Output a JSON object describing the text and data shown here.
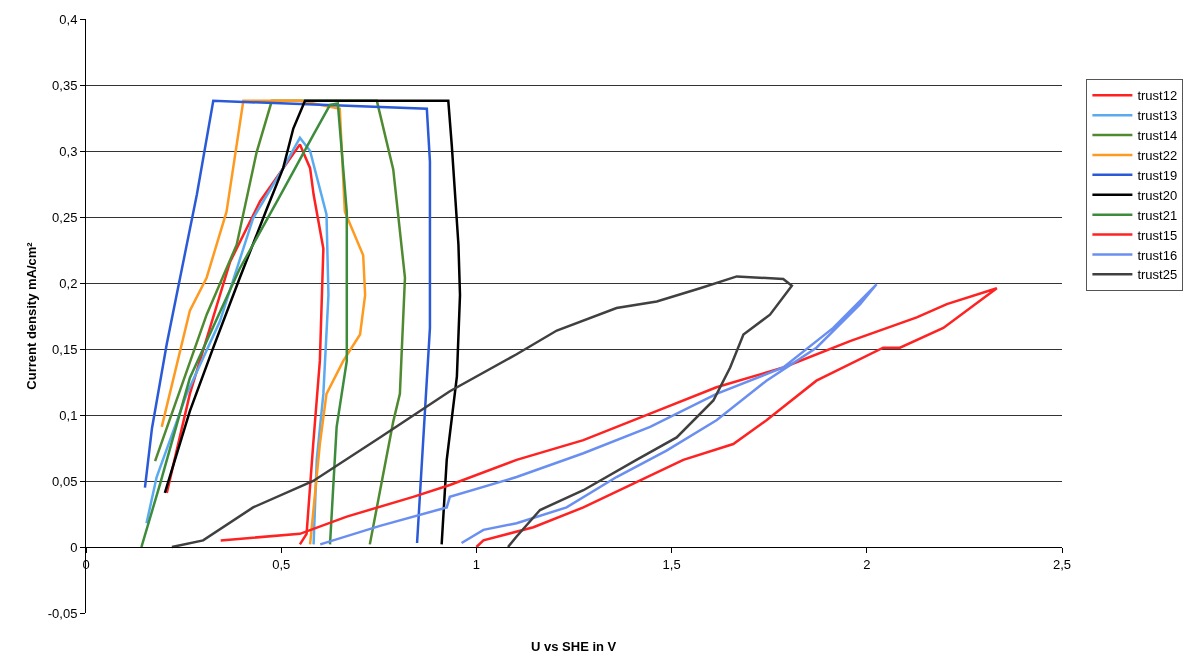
{
  "chart_data": {
    "type": "line",
    "xlabel": "U vs SHE in V",
    "ylabel": "Current density mA/cm²",
    "xlim": [
      0,
      2.5
    ],
    "ylim": [
      -0.05,
      0.4
    ],
    "xticks": [
      0,
      {
        "value": 0.5,
        "label": "0,5"
      },
      1,
      {
        "value": 1.5,
        "label": "1,5"
      },
      2,
      {
        "value": 2.5,
        "label": "2,5"
      }
    ],
    "yticks": [
      {
        "value": -0.05,
        "label": "-0,05"
      },
      0,
      {
        "value": 0.05,
        "label": "0,05"
      },
      {
        "value": 0.1,
        "label": "0,1"
      },
      {
        "value": 0.15,
        "label": "0,15"
      },
      {
        "value": 0.2,
        "label": "0,2"
      },
      {
        "value": 0.25,
        "label": "0,25"
      },
      {
        "value": 0.3,
        "label": "0,3"
      },
      {
        "value": 0.35,
        "label": "0,35"
      },
      {
        "value": 0.4,
        "label": "0,4"
      }
    ],
    "grid": "y",
    "legend": "right",
    "marker": "none",
    "line_style": "solid",
    "series": [
      {
        "name": "trust12",
        "color": "#ff2020",
        "x": [
          0.207,
          0.266,
          0.369,
          0.446,
          0.548,
          0.574,
          0.583,
          0.608,
          0.599,
          0.582,
          0.565,
          0.548
        ],
        "values": [
          0.041,
          0.116,
          0.216,
          0.262,
          0.305,
          0.287,
          0.267,
          0.226,
          0.141,
          0.078,
          0.01,
          0.002
        ]
      },
      {
        "name": "trust13",
        "color": "#5aaaf0",
        "x": [
          0.155,
          0.181,
          0.258,
          0.343,
          0.428,
          0.505,
          0.548,
          0.574,
          0.616,
          0.621,
          0.608,
          0.591,
          0.583
        ],
        "values": [
          0.018,
          0.053,
          0.116,
          0.171,
          0.249,
          0.287,
          0.31,
          0.3,
          0.252,
          0.191,
          0.116,
          0.066,
          0.002
        ]
      },
      {
        "name": "trust14",
        "color": "#4f8a30",
        "x": [
          0.177,
          0.309,
          0.386,
          0.437,
          0.476,
          0.745,
          0.787,
          0.817,
          0.804,
          0.787,
          0.727
        ],
        "values": [
          0.065,
          0.176,
          0.229,
          0.299,
          0.338,
          0.338,
          0.286,
          0.204,
          0.116,
          0.095,
          0.002
        ]
      },
      {
        "name": "trust22",
        "color": "#ff9a20",
        "x": [
          0.194,
          0.266,
          0.309,
          0.36,
          0.403,
          0.548,
          0.65,
          0.663,
          0.71,
          0.715,
          0.702,
          0.659,
          0.616,
          0.599,
          0.574
        ],
        "values": [
          0.091,
          0.179,
          0.204,
          0.254,
          0.338,
          0.338,
          0.332,
          0.254,
          0.221,
          0.191,
          0.161,
          0.141,
          0.116,
          0.078,
          0.002
        ]
      },
      {
        "name": "trust19",
        "color": "#2a5ad8",
        "x": [
          0.151,
          0.169,
          0.207,
          0.241,
          0.284,
          0.326,
          0.873,
          0.881,
          0.881,
          0.848
        ],
        "values": [
          0.045,
          0.09,
          0.154,
          0.204,
          0.267,
          0.338,
          0.332,
          0.292,
          0.166,
          0.003
        ]
      },
      {
        "name": "trust20",
        "color": "#000000",
        "x": [
          0.202,
          0.266,
          0.326,
          0.394,
          0.463,
          0.505,
          0.531,
          0.561,
          0.928,
          0.937,
          0.954,
          0.958,
          0.95,
          0.924,
          0.911
        ],
        "values": [
          0.041,
          0.103,
          0.151,
          0.204,
          0.256,
          0.287,
          0.317,
          0.338,
          0.338,
          0.304,
          0.229,
          0.191,
          0.129,
          0.066,
          0.002
        ]
      },
      {
        "name": "trust21",
        "color": "#3c8c3c",
        "x": [
          0.142,
          0.19,
          0.266,
          0.394,
          0.497,
          0.582,
          0.625,
          0.645,
          0.668,
          0.668,
          0.642,
          0.625
        ],
        "values": [
          0,
          0.048,
          0.128,
          0.211,
          0.266,
          0.312,
          0.335,
          0.336,
          0.254,
          0.141,
          0.091,
          0.002
        ]
      },
      {
        "name": "trust15",
        "color": "#ff2222",
        "x": [
          0.345,
          0.548,
          0.668,
          0.838,
          0.932,
          1.103,
          1.274,
          1.445,
          1.615,
          1.786,
          1.957,
          2.128,
          2.205,
          2.333,
          2.196,
          2.085,
          2.042,
          1.871,
          1.743,
          1.658,
          1.53,
          1.402,
          1.274,
          1.146,
          1.018,
          1.0
        ],
        "values": [
          0.005,
          0.01,
          0.023,
          0.038,
          0.047,
          0.066,
          0.081,
          0.101,
          0.121,
          0.136,
          0.156,
          0.174,
          0.184,
          0.196,
          0.166,
          0.151,
          0.151,
          0.126,
          0.096,
          0.078,
          0.066,
          0.048,
          0.03,
          0.015,
          0.005,
          0
        ]
      },
      {
        "name": "trust16",
        "color": "#6a8ff0",
        "x": [
          0.6,
          0.753,
          0.924,
          0.932,
          1.103,
          1.274,
          1.445,
          1.615,
          1.786,
          1.914,
          2.025,
          1.983,
          1.871,
          1.743,
          1.615,
          1.487,
          1.359,
          1.231,
          1.103,
          1.018,
          0.962
        ],
        "values": [
          0.002,
          0.016,
          0.03,
          0.038,
          0.053,
          0.071,
          0.091,
          0.116,
          0.136,
          0.166,
          0.199,
          0.184,
          0.151,
          0.126,
          0.096,
          0.073,
          0.053,
          0.03,
          0.018,
          0.013,
          0.003
        ]
      },
      {
        "name": "trust25",
        "color": "#404040",
        "x": [
          0.22,
          0.3,
          0.428,
          0.582,
          0.753,
          0.932,
          1.103,
          1.206,
          1.359,
          1.462,
          1.573,
          1.667,
          1.786,
          1.808,
          1.752,
          1.684,
          1.65,
          1.607,
          1.513,
          1.41,
          1.274,
          1.163,
          1.103,
          1.081
        ],
        "values": [
          0,
          0.005,
          0.03,
          0.05,
          0.083,
          0.118,
          0.146,
          0.164,
          0.181,
          0.186,
          0.196,
          0.205,
          0.203,
          0.198,
          0.176,
          0.161,
          0.136,
          0.111,
          0.083,
          0.066,
          0.043,
          0.028,
          0.008,
          0
        ]
      }
    ]
  }
}
